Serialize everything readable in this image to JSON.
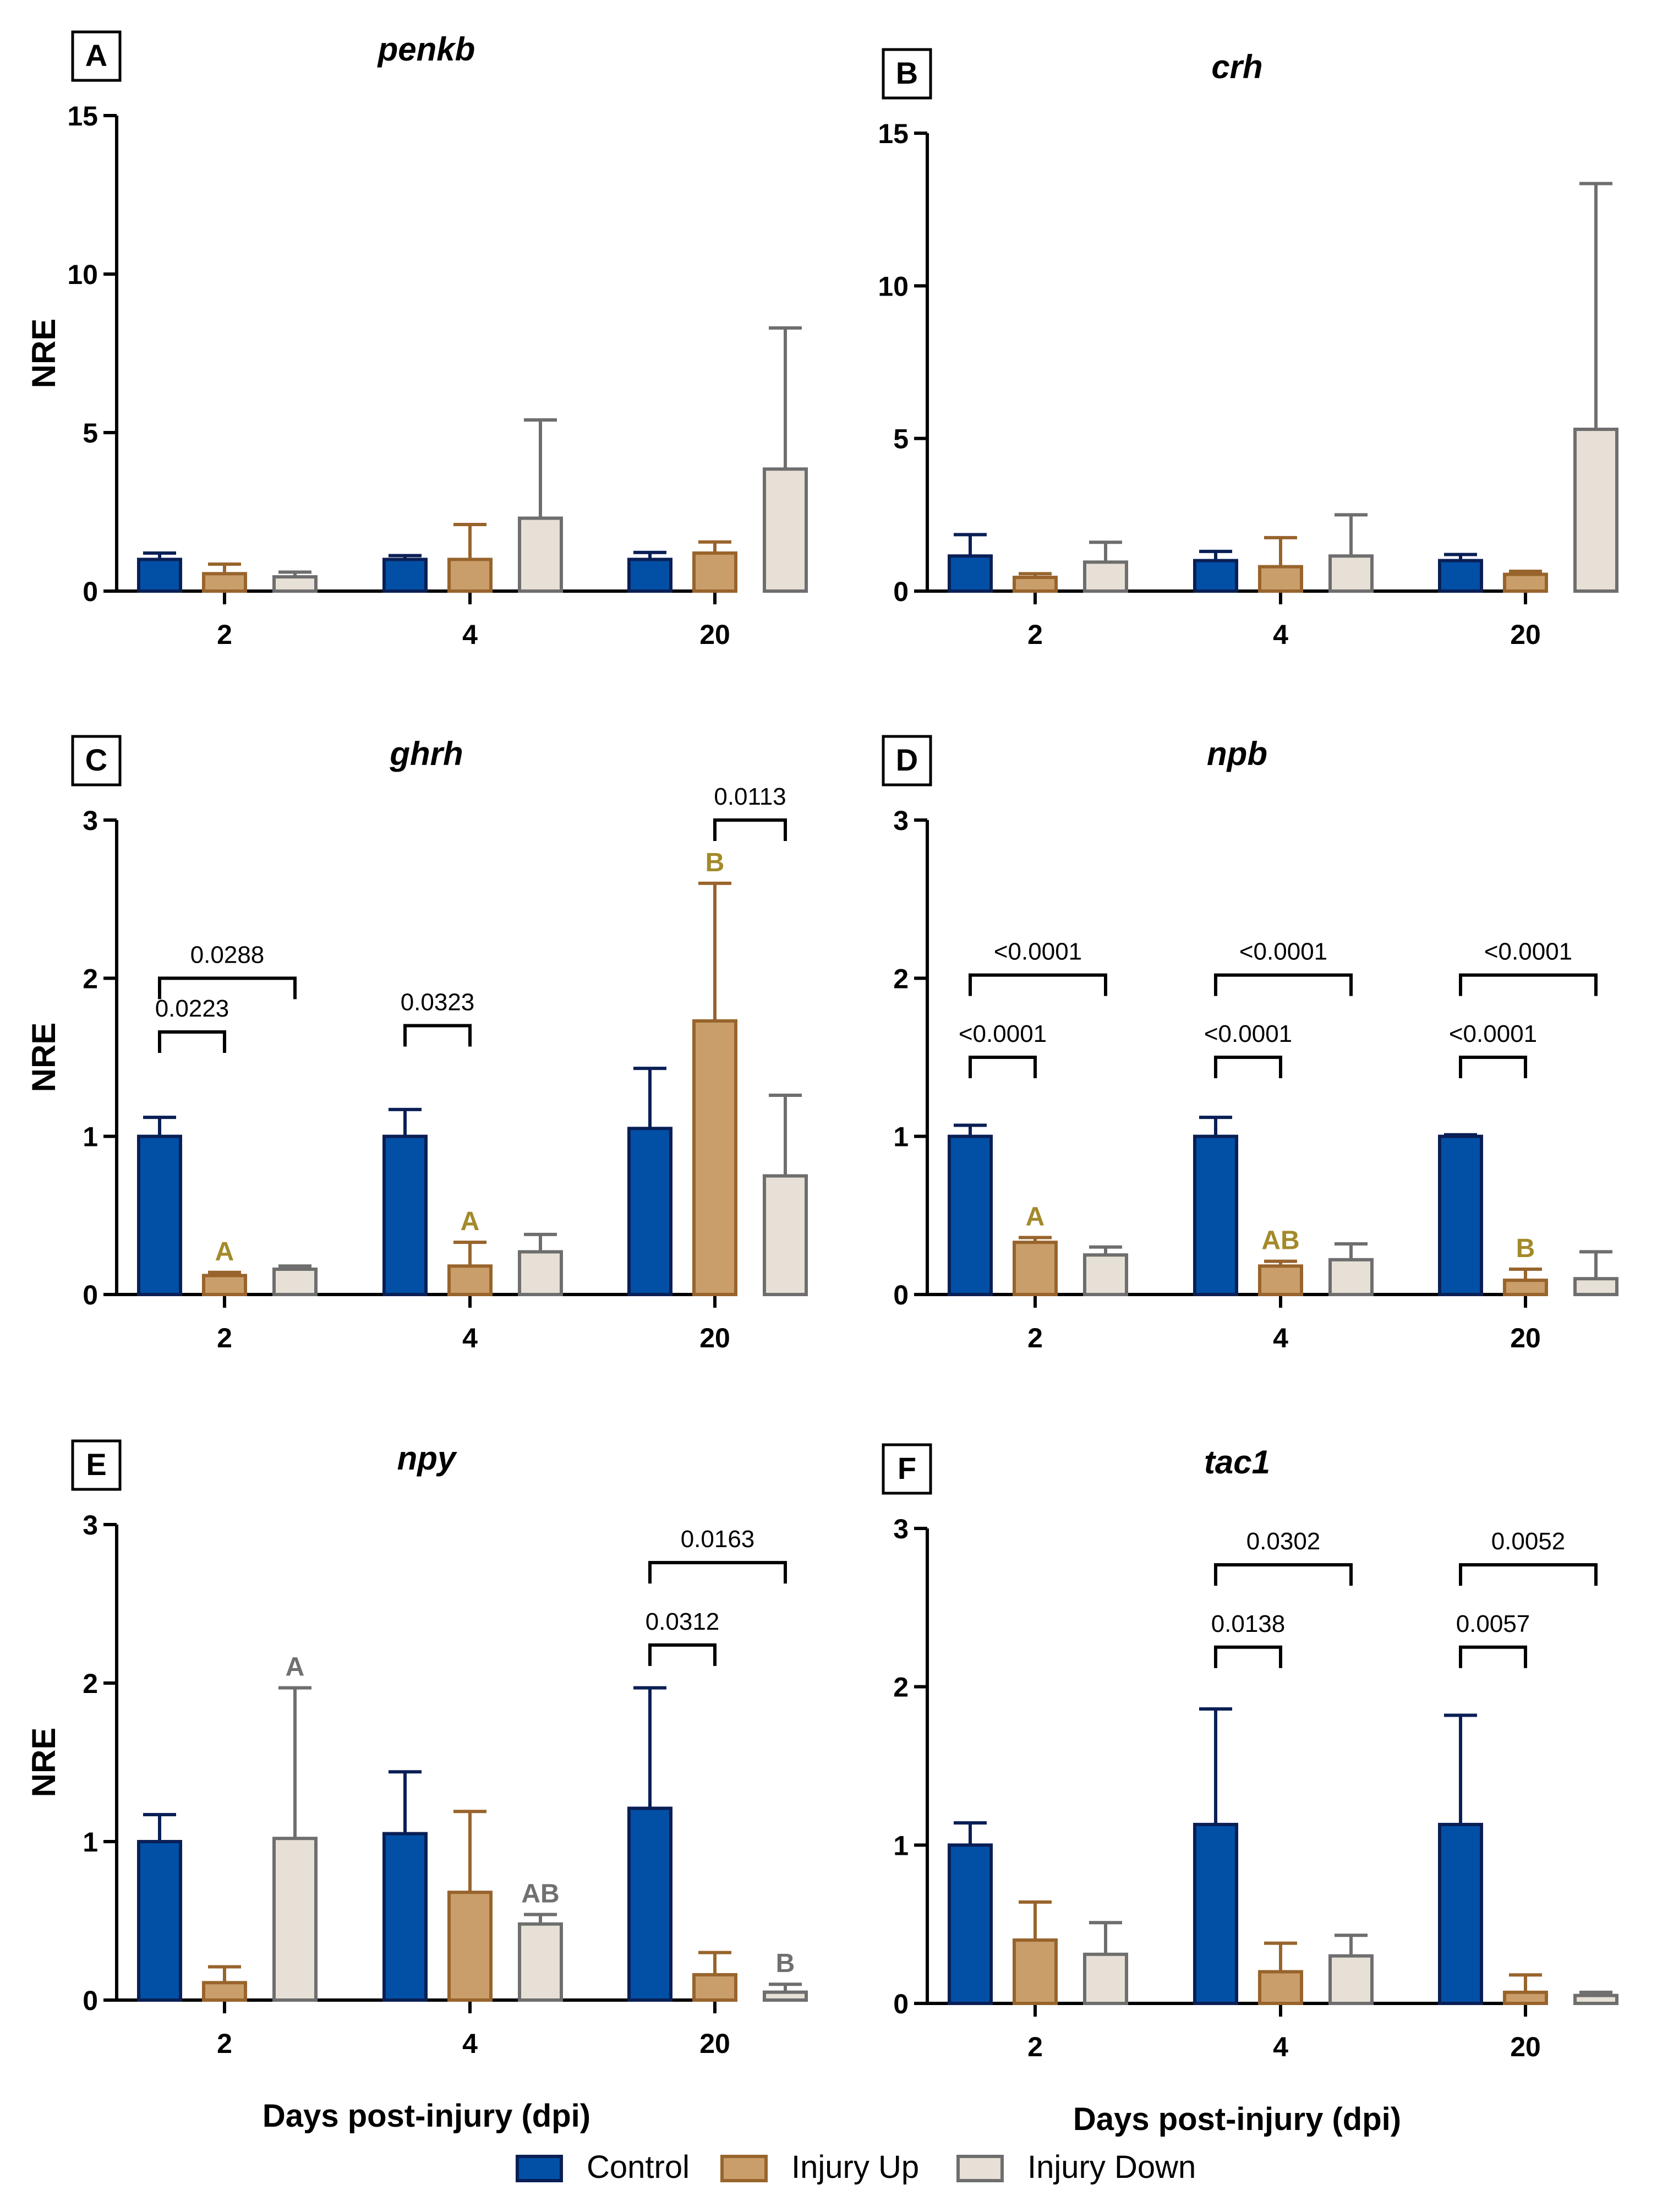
{
  "colors": {
    "control_fill": "#0250A6",
    "control_stroke": "#0A1F55",
    "up_fill": "#C99E6B",
    "up_stroke": "#98642C",
    "down_fill": "#E7E0D6",
    "down_stroke": "#6E6E6E",
    "letter_up": "#A38A2A",
    "letter_down": "#707070",
    "axis": "#000000"
  },
  "legend": {
    "items": [
      {
        "label": "Control",
        "series": "control"
      },
      {
        "label": "Injury Up",
        "series": "up"
      },
      {
        "label": "Injury Down",
        "series": "down"
      }
    ]
  },
  "chart_data": [
    {
      "panel_letter": "A",
      "type": "bar",
      "title": "penkb",
      "ylabel": "NRE",
      "xlabel": "",
      "categories": [
        "2",
        "4",
        "20"
      ],
      "ylim": [
        0,
        15
      ],
      "yticks": [
        0,
        5,
        10,
        15
      ],
      "yticks_labels": [
        "0",
        "5",
        "10",
        "15"
      ],
      "series": [
        {
          "name": "Control",
          "key": "control",
          "values": [
            1.0,
            1.0,
            1.0
          ],
          "errors": [
            0.2,
            0.12,
            0.22
          ]
        },
        {
          "name": "Injury Up",
          "key": "up",
          "values": [
            0.55,
            1.0,
            1.2
          ],
          "errors": [
            0.3,
            1.1,
            0.35
          ]
        },
        {
          "name": "Injury Down",
          "key": "down",
          "values": [
            0.45,
            2.3,
            3.85
          ],
          "errors": [
            0.15,
            3.1,
            4.45
          ]
        }
      ],
      "letters": [],
      "brackets": []
    },
    {
      "panel_letter": "B",
      "type": "bar",
      "title": "crh",
      "ylabel": "",
      "xlabel": "",
      "categories": [
        "2",
        "4",
        "20"
      ],
      "ylim": [
        0,
        15
      ],
      "yticks": [
        0,
        5,
        10,
        15
      ],
      "yticks_labels": [
        "0",
        "5",
        "10",
        "15"
      ],
      "series": [
        {
          "name": "Control",
          "key": "control",
          "values": [
            1.15,
            1.0,
            1.0
          ],
          "errors": [
            0.7,
            0.3,
            0.2
          ]
        },
        {
          "name": "Injury Up",
          "key": "up",
          "values": [
            0.45,
            0.8,
            0.55
          ],
          "errors": [
            0.12,
            0.95,
            0.1
          ]
        },
        {
          "name": "Injury Down",
          "key": "down",
          "values": [
            0.95,
            1.15,
            5.3
          ],
          "errors": [
            0.65,
            1.35,
            8.05
          ]
        }
      ],
      "letters": [],
      "brackets": []
    },
    {
      "panel_letter": "C",
      "type": "bar",
      "title": "ghrh",
      "ylabel": "NRE",
      "xlabel": "",
      "categories": [
        "2",
        "4",
        "20"
      ],
      "ylim": [
        0,
        3
      ],
      "yticks": [
        0,
        1,
        2,
        3
      ],
      "yticks_labels": [
        "0",
        "1",
        "2",
        "3"
      ],
      "series": [
        {
          "name": "Control",
          "key": "control",
          "values": [
            1.0,
            1.0,
            1.05
          ],
          "errors": [
            0.12,
            0.17,
            0.38
          ]
        },
        {
          "name": "Injury Up",
          "key": "up",
          "values": [
            0.12,
            0.18,
            1.73
          ],
          "errors": [
            0.02,
            0.15,
            0.87
          ]
        },
        {
          "name": "Injury Down",
          "key": "down",
          "values": [
            0.16,
            0.27,
            0.75
          ],
          "errors": [
            0.02,
            0.11,
            0.51
          ]
        }
      ],
      "letters": [
        {
          "cat": 0,
          "series": 1,
          "text": "A",
          "color": "letter_up"
        },
        {
          "cat": 1,
          "series": 1,
          "text": "A",
          "color": "letter_up"
        },
        {
          "cat": 2,
          "series": 1,
          "text": "B",
          "color": "letter_up"
        }
      ],
      "brackets": [
        {
          "cat": 0,
          "from": 0,
          "to": 1,
          "y": 1.66,
          "label": "0.0223"
        },
        {
          "cat": 0,
          "from": 0,
          "to": 2,
          "y": 2.0,
          "label": "0.0288"
        },
        {
          "cat": 1,
          "from": 0,
          "to": 1,
          "y": 1.7,
          "label": "0.0323"
        },
        {
          "cat": 2,
          "from": 1,
          "to": 2,
          "y": 3.0,
          "label": "0.0113"
        }
      ]
    },
    {
      "panel_letter": "D",
      "type": "bar",
      "title": "npb",
      "ylabel": "",
      "xlabel": "",
      "categories": [
        "2",
        "4",
        "20"
      ],
      "ylim": [
        0,
        3
      ],
      "yticks": [
        0,
        1,
        2,
        3
      ],
      "yticks_labels": [
        "0",
        "1",
        "2",
        "3"
      ],
      "series": [
        {
          "name": "Control",
          "key": "control",
          "values": [
            1.0,
            1.0,
            1.0
          ],
          "errors": [
            0.07,
            0.12,
            0.01
          ]
        },
        {
          "name": "Injury Up",
          "key": "up",
          "values": [
            0.33,
            0.18,
            0.09
          ],
          "errors": [
            0.03,
            0.03,
            0.07
          ]
        },
        {
          "name": "Injury Down",
          "key": "down",
          "values": [
            0.25,
            0.22,
            0.1
          ],
          "errors": [
            0.05,
            0.1,
            0.17
          ]
        }
      ],
      "letters": [
        {
          "cat": 0,
          "series": 1,
          "text": "A",
          "color": "letter_up"
        },
        {
          "cat": 1,
          "series": 1,
          "text": "AB",
          "color": "letter_up"
        },
        {
          "cat": 2,
          "series": 1,
          "text": "B",
          "color": "letter_up"
        }
      ],
      "brackets": [
        {
          "cat": 0,
          "from": 0,
          "to": 1,
          "y": 1.5,
          "label": "<0.0001"
        },
        {
          "cat": 0,
          "from": 0,
          "to": 2,
          "y": 2.02,
          "label": "<0.0001"
        },
        {
          "cat": 1,
          "from": 0,
          "to": 1,
          "y": 1.5,
          "label": "<0.0001"
        },
        {
          "cat": 1,
          "from": 0,
          "to": 2,
          "y": 2.02,
          "label": "<0.0001"
        },
        {
          "cat": 2,
          "from": 0,
          "to": 1,
          "y": 1.5,
          "label": "<0.0001"
        },
        {
          "cat": 2,
          "from": 0,
          "to": 2,
          "y": 2.02,
          "label": "<0.0001"
        }
      ]
    },
    {
      "panel_letter": "E",
      "type": "bar",
      "title": "npy",
      "ylabel": "NRE",
      "xlabel": "Days post-injury (dpi)",
      "categories": [
        "2",
        "4",
        "20"
      ],
      "ylim": [
        0,
        3
      ],
      "yticks": [
        0,
        1,
        2,
        3
      ],
      "yticks_labels": [
        "0",
        "1",
        "2",
        "3"
      ],
      "series": [
        {
          "name": "Control",
          "key": "control",
          "values": [
            1.0,
            1.05,
            1.21
          ],
          "errors": [
            0.17,
            0.39,
            0.76
          ]
        },
        {
          "name": "Injury Up",
          "key": "up",
          "values": [
            0.11,
            0.68,
            0.16
          ],
          "errors": [
            0.1,
            0.51,
            0.14
          ]
        },
        {
          "name": "Injury Down",
          "key": "down",
          "values": [
            1.02,
            0.48,
            0.05
          ],
          "errors": [
            0.95,
            0.06,
            0.05
          ]
        }
      ],
      "letters": [
        {
          "cat": 0,
          "series": 2,
          "text": "A",
          "color": "letter_down"
        },
        {
          "cat": 1,
          "series": 2,
          "text": "AB",
          "color": "letter_down"
        },
        {
          "cat": 2,
          "series": 2,
          "text": "B",
          "color": "letter_down"
        }
      ],
      "brackets": [
        {
          "cat": 2,
          "from": 0,
          "to": 1,
          "y": 2.24,
          "label": "0.0312"
        },
        {
          "cat": 2,
          "from": 0,
          "to": 2,
          "y": 2.76,
          "label": "0.0163"
        }
      ]
    },
    {
      "panel_letter": "F",
      "type": "bar",
      "title": "tac1",
      "ylabel": "",
      "xlabel": "Days post-injury (dpi)",
      "categories": [
        "2",
        "4",
        "20"
      ],
      "ylim": [
        0,
        3
      ],
      "yticks": [
        0,
        1,
        2,
        3
      ],
      "yticks_labels": [
        "0",
        "1",
        "2",
        "3"
      ],
      "series": [
        {
          "name": "Control",
          "key": "control",
          "values": [
            1.0,
            1.13,
            1.13
          ],
          "errors": [
            0.14,
            0.73,
            0.69
          ]
        },
        {
          "name": "Injury Up",
          "key": "up",
          "values": [
            0.4,
            0.2,
            0.07
          ],
          "errors": [
            0.24,
            0.18,
            0.11
          ]
        },
        {
          "name": "Injury Down",
          "key": "down",
          "values": [
            0.31,
            0.3,
            0.05
          ],
          "errors": [
            0.2,
            0.13,
            0.02
          ]
        }
      ],
      "letters": [],
      "brackets": [
        {
          "cat": 1,
          "from": 0,
          "to": 1,
          "y": 2.25,
          "label": "0.0138"
        },
        {
          "cat": 1,
          "from": 0,
          "to": 2,
          "y": 2.77,
          "label": "0.0302"
        },
        {
          "cat": 2,
          "from": 0,
          "to": 1,
          "y": 2.25,
          "label": "0.0057"
        },
        {
          "cat": 2,
          "from": 0,
          "to": 2,
          "y": 2.77,
          "label": "0.0052"
        }
      ]
    }
  ]
}
